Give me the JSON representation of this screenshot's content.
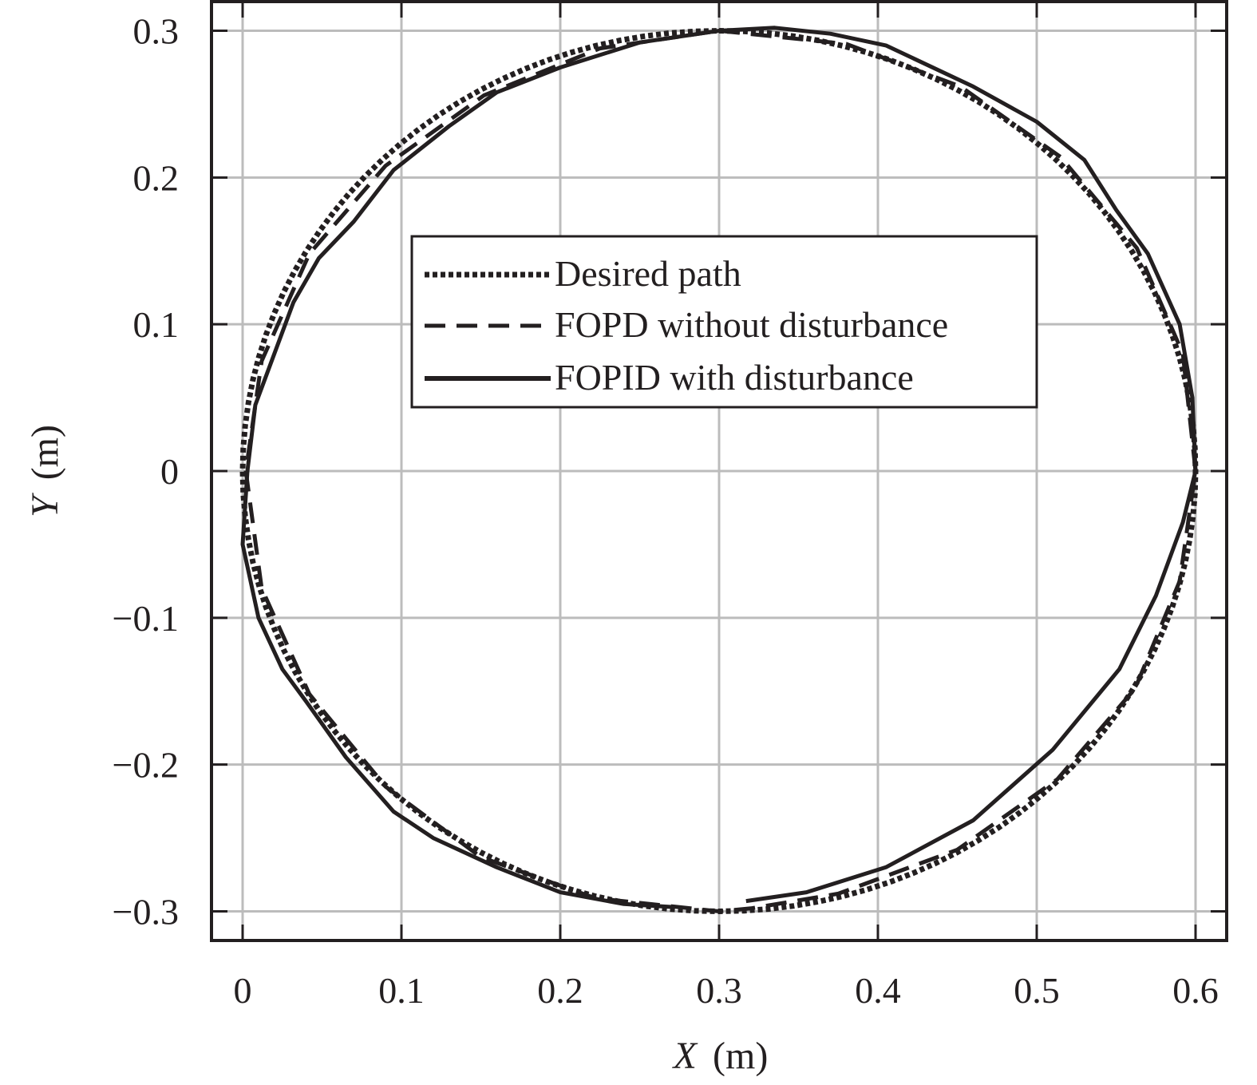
{
  "chart_data": {
    "type": "line",
    "title": "",
    "xlabel": "X (m)",
    "xlabel_var": "X",
    "xlabel_unit": "(m)",
    "ylabel": "Y (m)",
    "ylabel_var": "Y",
    "ylabel_unit": "(m)",
    "xlim": [
      -0.02,
      0.62
    ],
    "ylim": [
      -0.32,
      0.32
    ],
    "xticks": [
      0,
      0.1,
      0.2,
      0.3,
      0.4,
      0.5,
      0.6
    ],
    "xtick_labels": [
      "0",
      "0.1",
      "0.2",
      "0.3",
      "0.4",
      "0.5",
      "0.6"
    ],
    "yticks": [
      0.3,
      0.2,
      0.1,
      0,
      -0.1,
      -0.2,
      -0.3
    ],
    "ytick_labels": [
      "0.3",
      "0.2",
      "0.1",
      "0",
      "−0.1",
      "−0.2",
      "−0.3"
    ],
    "grid": true,
    "legend_position": "center-top inside",
    "series": [
      {
        "name": "Desired path",
        "style": "dotted",
        "description": "circle centered (0.3, 0) radius 0.3",
        "x": [
          0.3,
          0.378,
          0.45,
          0.512,
          0.56,
          0.59,
          0.6,
          0.59,
          0.56,
          0.512,
          0.45,
          0.378,
          0.3,
          0.222,
          0.15,
          0.088,
          0.04,
          0.01,
          0.0,
          0.01,
          0.04,
          0.088,
          0.15,
          0.222,
          0.3
        ],
        "y": [
          0.3,
          0.29,
          0.26,
          0.212,
          0.15,
          0.078,
          0.0,
          -0.078,
          -0.15,
          -0.212,
          -0.26,
          -0.29,
          -0.3,
          -0.29,
          -0.26,
          -0.212,
          -0.15,
          -0.078,
          0.0,
          0.078,
          0.15,
          0.212,
          0.26,
          0.29,
          0.3
        ]
      },
      {
        "name": "FOPD without disturbance",
        "style": "dashed",
        "x": [
          0.3,
          0.38,
          0.452,
          0.515,
          0.563,
          0.592,
          0.6,
          0.59,
          0.562,
          0.513,
          0.45,
          0.375,
          0.32,
          0.3,
          0.222,
          0.15,
          0.09,
          0.042,
          0.012,
          0.002,
          0.012,
          0.042,
          0.09,
          0.152,
          0.225,
          0.3
        ],
        "y": [
          0.3,
          0.291,
          0.262,
          0.214,
          0.152,
          0.08,
          0.0,
          -0.075,
          -0.148,
          -0.21,
          -0.258,
          -0.288,
          -0.298,
          -0.3,
          -0.291,
          -0.263,
          -0.215,
          -0.152,
          -0.08,
          0.0,
          0.075,
          0.148,
          0.208,
          0.256,
          0.288,
          0.3
        ]
      },
      {
        "name": "FOPID with disturbance",
        "style": "solid",
        "x": [
          0.317,
          0.355,
          0.405,
          0.46,
          0.51,
          0.552,
          0.575,
          0.592,
          0.6,
          0.598,
          0.59,
          0.57,
          0.55,
          0.53,
          0.5,
          0.46,
          0.405,
          0.37,
          0.335,
          0.3,
          0.25,
          0.2,
          0.16,
          0.13,
          0.095,
          0.07,
          0.048,
          0.032,
          0.008,
          0.003,
          0.0,
          0.01,
          0.025,
          0.04,
          0.065,
          0.095,
          0.12,
          0.16,
          0.2,
          0.24,
          0.27
        ],
        "y": [
          -0.293,
          -0.287,
          -0.27,
          -0.238,
          -0.19,
          -0.135,
          -0.085,
          -0.035,
          0.0,
          0.05,
          0.1,
          0.148,
          0.178,
          0.212,
          0.238,
          0.262,
          0.29,
          0.298,
          0.302,
          0.3,
          0.292,
          0.275,
          0.258,
          0.235,
          0.205,
          0.17,
          0.145,
          0.115,
          0.045,
          0.0,
          -0.05,
          -0.1,
          -0.135,
          -0.157,
          -0.195,
          -0.232,
          -0.25,
          -0.27,
          -0.287,
          -0.295,
          -0.297
        ]
      }
    ]
  },
  "legend": {
    "items": [
      {
        "label": "Desired path",
        "style": "dotted"
      },
      {
        "label": "FOPD without disturbance",
        "style": "dashed"
      },
      {
        "label": "FOPID with disturbance",
        "style": "solid"
      }
    ]
  },
  "colors": {
    "line": "#231f20",
    "grid": "#bcbcbc",
    "axis": "#231f20",
    "background": "#ffffff"
  }
}
